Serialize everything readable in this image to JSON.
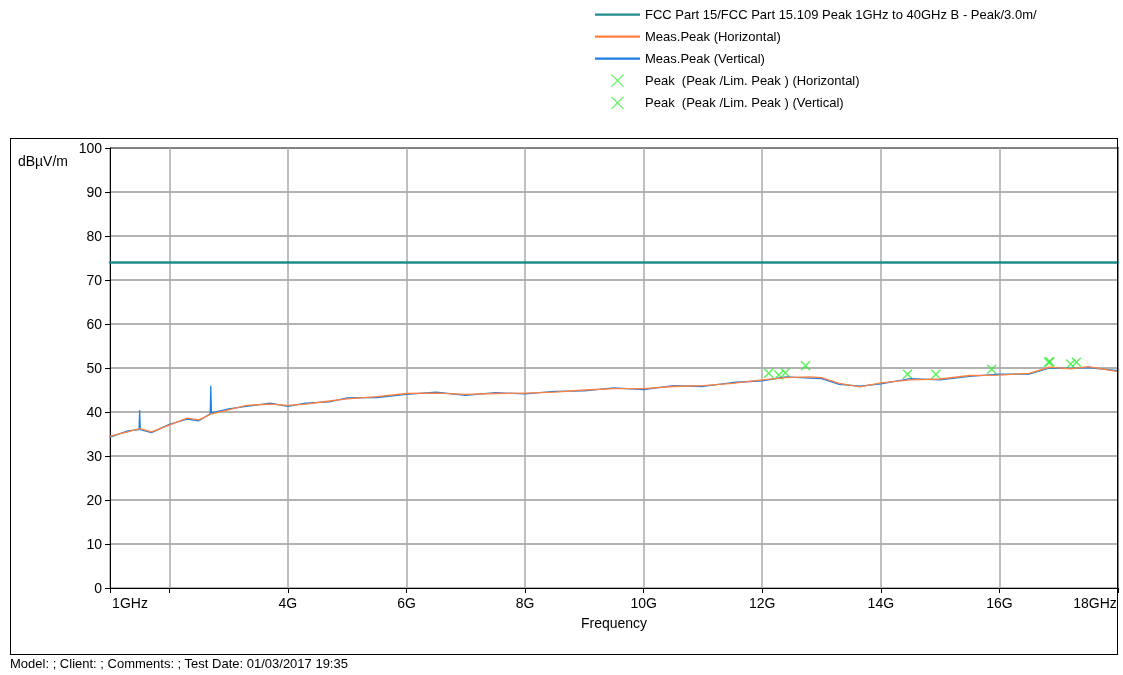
{
  "chart_data": {
    "type": "line",
    "xlabel": "Frequency",
    "ylabel": "dBµV/m",
    "xlim": [
      1,
      18
    ],
    "xticks": [
      {
        "value": 1,
        "label": "1GHz"
      },
      {
        "value": 2,
        "label": null
      },
      {
        "value": 4,
        "label": "4G"
      },
      {
        "value": 6,
        "label": "6G"
      },
      {
        "value": 8,
        "label": "8G"
      },
      {
        "value": 10,
        "label": "10G"
      },
      {
        "value": 12,
        "label": "12G"
      },
      {
        "value": 14,
        "label": "14G"
      },
      {
        "value": 16,
        "label": "16G"
      },
      {
        "value": 18,
        "label": "18GHz"
      }
    ],
    "ylim": [
      0,
      100
    ],
    "yticks": [
      0,
      10,
      20,
      30,
      40,
      50,
      60,
      70,
      80,
      90,
      100
    ],
    "grid": true,
    "legend": "top right",
    "marker": "none",
    "line_style": "solid",
    "annotations": [
      "Model: ; Client: ; Comments: ; Test Date:  01/03/2017 19:35"
    ],
    "series": [
      {
        "name": "FCC Part 15/FCC Part 15.109 Peak 1GHz to 40GHz B - Peak/3.0m/",
        "color": "#1f8c8c",
        "x": [
          1,
          18
        ],
        "values": [
          74,
          74
        ]
      },
      {
        "name": "Meas.Peak (Horizontal)",
        "color": "#ff8040",
        "x": [
          1,
          1.3,
          1.5,
          1.7,
          2,
          2.3,
          2.5,
          2.7,
          3,
          3.3,
          3.7,
          4,
          4.3,
          4.7,
          5,
          5.5,
          6,
          6.5,
          7,
          7.5,
          8,
          8.5,
          9,
          9.5,
          10,
          10.5,
          11,
          11.5,
          12,
          12.4,
          12.8,
          13,
          13.3,
          13.65,
          14,
          14.5,
          15,
          15.5,
          16,
          16.5,
          16.85,
          17.2,
          17.5,
          18
        ],
        "values": [
          34.5,
          35.5,
          36.2,
          35.5,
          37,
          38.6,
          38.2,
          39.5,
          40.5,
          41.5,
          41.8,
          41.5,
          41.8,
          42.5,
          43,
          43.5,
          44.2,
          44.3,
          44,
          44.2,
          44.3,
          44.5,
          45,
          45.3,
          45.3,
          45.8,
          46,
          46.5,
          47.3,
          47.8,
          48,
          47.8,
          46.5,
          45.7,
          46.6,
          47.3,
          47.5,
          48.3,
          48.4,
          48.8,
          50.2,
          49.8,
          50.3,
          49.2
        ]
      },
      {
        "name": "Meas.Peak (Vertical)",
        "color": "#1e7fe0",
        "x": [
          1,
          1.3,
          1.49,
          1.5,
          1.51,
          1.7,
          2,
          2.3,
          2.5,
          2.69,
          2.7,
          2.71,
          3,
          3.3,
          3.7,
          4,
          4.3,
          4.7,
          5,
          5.5,
          6,
          6.5,
          7,
          7.5,
          8,
          8.5,
          9,
          9.5,
          10,
          10.5,
          11,
          11.5,
          12,
          12.4,
          12.8,
          13,
          13.3,
          13.65,
          14,
          14.5,
          15,
          15.5,
          16,
          16.5,
          16.85,
          17.2,
          17.5,
          18
        ],
        "values": [
          34.3,
          35.7,
          36,
          40.3,
          36,
          35.3,
          37.2,
          38.4,
          38,
          39.6,
          45.9,
          39.8,
          40.7,
          41.3,
          42,
          41.3,
          42,
          42.3,
          43.2,
          43.3,
          44,
          44.5,
          43.8,
          44.4,
          44.1,
          44.7,
          44.8,
          45.5,
          45.1,
          46,
          45.8,
          46.7,
          47.1,
          48,
          47.7,
          47.6,
          46.3,
          45.9,
          46.4,
          47.6,
          47.3,
          48.1,
          48.6,
          48.6,
          50,
          49.9,
          50.1,
          49.4
        ]
      },
      {
        "name": "Peak  (Peak /Lim. Peak ) (Horizontal)",
        "type": "scatter",
        "marker": "cross",
        "color": "#33ee33",
        "x": [
          12.11,
          12.39,
          12.73,
          14.93,
          15.87,
          16.83,
          17.3
        ],
        "values": [
          48.8,
          48.9,
          50.5,
          48.6,
          49.7,
          51.3,
          51.3
        ]
      },
      {
        "name": "Peak  (Peak /Lim. Peak ) (Vertical)",
        "type": "scatter",
        "marker": "cross",
        "color": "#33ee33",
        "x": [
          12.28,
          14.45,
          16.85,
          17.2
        ],
        "values": [
          48.4,
          48.6,
          51.4,
          50.9
        ]
      }
    ]
  }
}
